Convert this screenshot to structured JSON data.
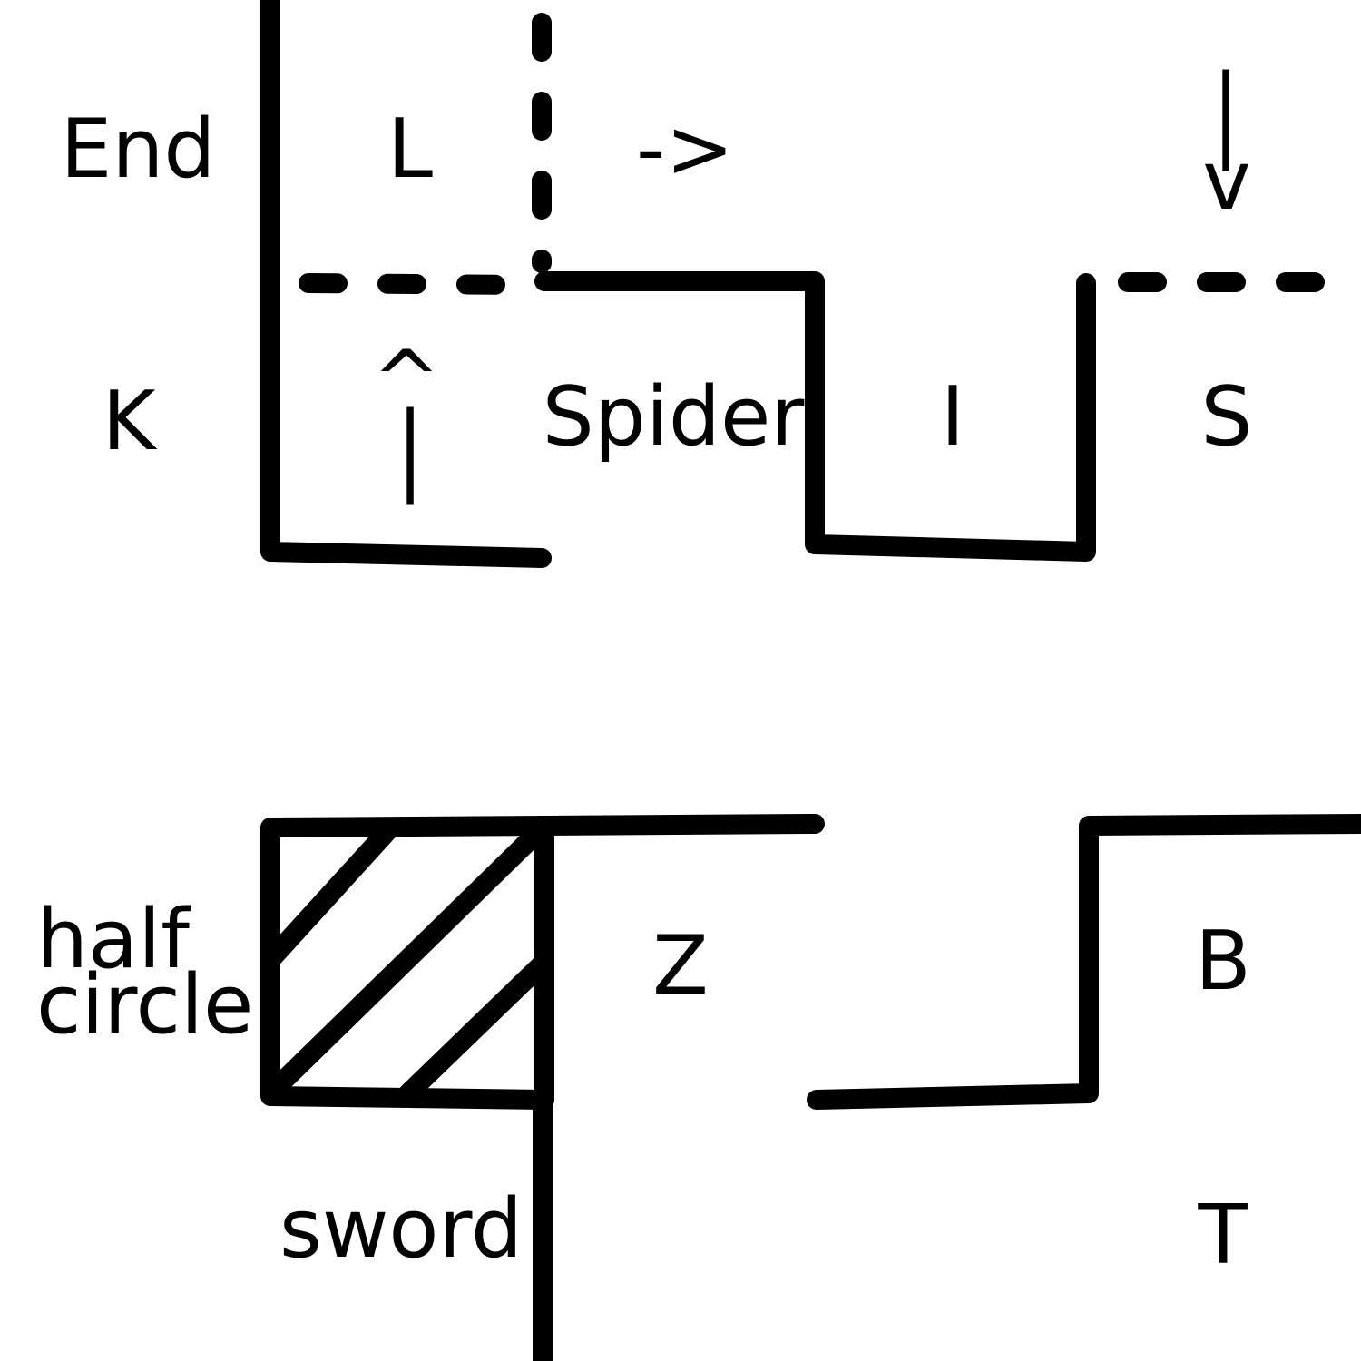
{
  "colors": {
    "wall": "#000000",
    "background": "#ffffff"
  },
  "labels": {
    "end": "End",
    "l": "L",
    "arrow_right": "->",
    "arrow_down_shaft": "|",
    "arrow_down_head": "v",
    "k": "K",
    "arrow_up_head": "^",
    "arrow_up_shaft": "|",
    "spider": "Spider",
    "i": "I",
    "s": "S",
    "half": "half",
    "circle": "circle",
    "z": "Z",
    "b": "B",
    "sword": "sword",
    "t": "T"
  }
}
